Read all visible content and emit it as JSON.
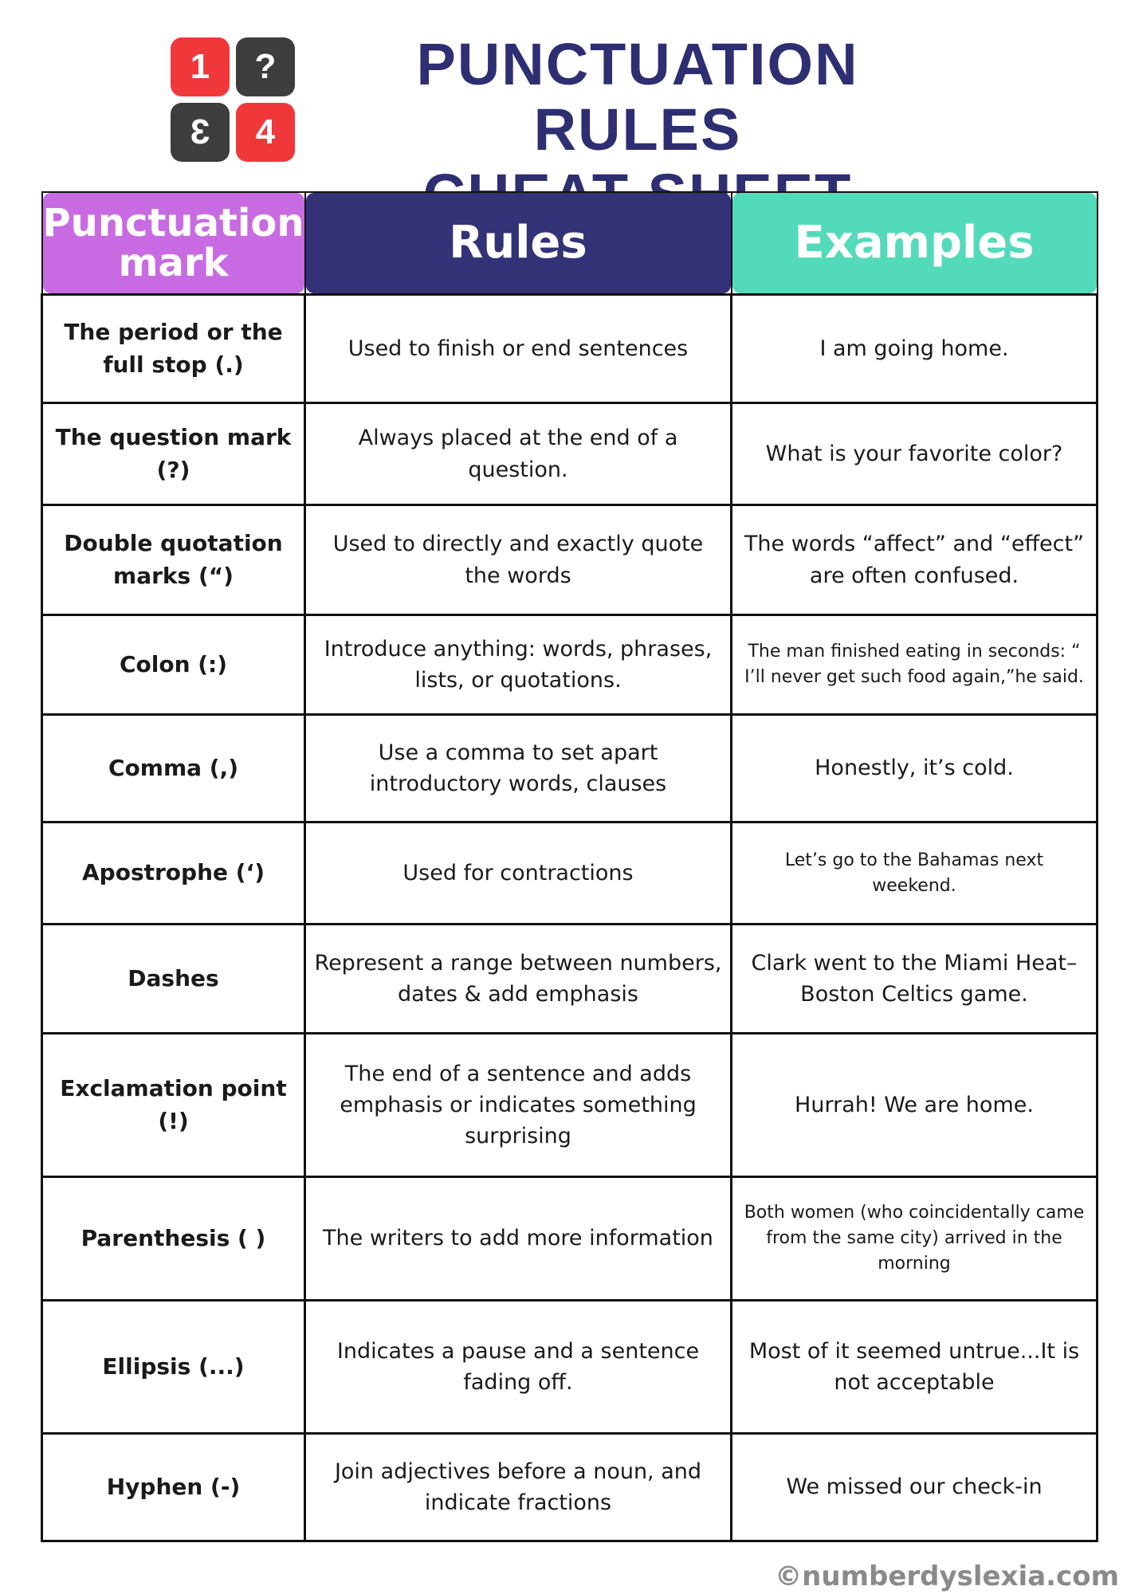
{
  "logo": {
    "tiles": [
      "1",
      "?",
      "3",
      "4"
    ],
    "colors": {
      "red": "#f0383b",
      "dark": "#3d3d3d"
    }
  },
  "title": {
    "line1": "PUNCTUATION RULES",
    "line2": "CHEAT SHEET",
    "color": "#2e2e72"
  },
  "table": {
    "headers": [
      {
        "label": "Punctuation mark",
        "color": "#c86be2"
      },
      {
        "label": "Rules",
        "color": "#343276"
      },
      {
        "label": "Examples",
        "color": "#53dabb"
      }
    ],
    "rows": [
      {
        "mark": "The period or the full stop (.)",
        "rule": "Used to finish or end sentences",
        "example": "I am going home."
      },
      {
        "mark": "The question mark (?)",
        "rule": "Always placed at the end of a question.",
        "example": "What is your favorite color?"
      },
      {
        "mark": "Double quotation marks (“)",
        "rule": "Used to directly and exactly quote the words",
        "example": "The words “affect” and “effect” are often confused."
      },
      {
        "mark": "Colon (:)",
        "rule": "Introduce anything: words, phrases, lists, or quotations.",
        "example": "The man finished eating in seconds: “ I’ll never get such food again,”he said."
      },
      {
        "mark": "Comma (,)",
        "rule": "Use a comma to set apart introductory words, clauses",
        "example": "Honestly, it’s cold."
      },
      {
        "mark": "Apostrophe (‘)",
        "rule": "Used for contractions",
        "example": "Let’s go to the Bahamas next weekend."
      },
      {
        "mark": "Dashes",
        "rule": "Represent a range between numbers, dates & add emphasis",
        "example": "Clark went to the Miami Heat–Boston Celtics game."
      },
      {
        "mark": "Exclamation point (!)",
        "rule": "The end of a sentence and adds emphasis or indicates something surprising",
        "example": "Hurrah! We are home."
      },
      {
        "mark": "Parenthesis ( )",
        "rule": "The writers to add more information",
        "example": "Both women (who coincidentally came from the same city) arrived in the morning"
      },
      {
        "mark": "Ellipsis (...)",
        "rule": "Indicates a pause and a sentence fading off.",
        "example": "Most of it seemed untrue...It is not acceptable"
      },
      {
        "mark": "Hyphen (-)",
        "rule": "Join adjectives before a noun, and indicate fractions",
        "example": "We missed our check-in"
      }
    ]
  },
  "footer": "©numberdyslexia.com"
}
